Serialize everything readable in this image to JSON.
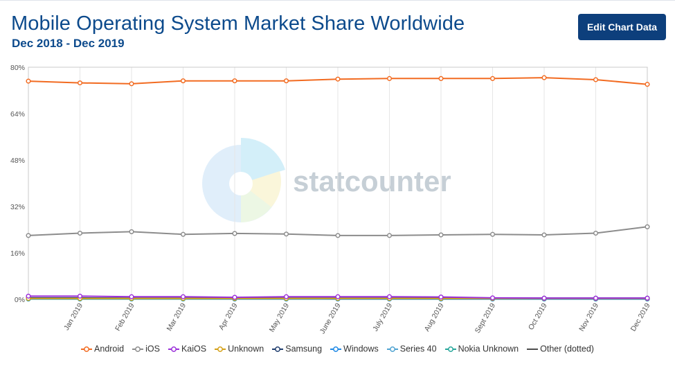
{
  "header": {
    "title": "Mobile Operating System Market Share Worldwide",
    "subtitle": "Dec 2018 - Dec 2019",
    "edit_button_label": "Edit Chart Data"
  },
  "watermark": {
    "text": "statcounter"
  },
  "chart_data": {
    "type": "line",
    "title": "Mobile Operating System Market Share Worldwide",
    "subtitle": "Dec 2018 - Dec 2019",
    "x": [
      "Dec 2018",
      "Jan 2019",
      "Feb 2019",
      "Mar 2019",
      "Apr 2019",
      "May 2019",
      "June 2019",
      "July 2019",
      "Aug 2019",
      "Sept 2019",
      "Oct 2019",
      "Nov 2019",
      "Dec 2019"
    ],
    "x_tick_labels": [
      "",
      "Jan 2019",
      "Feb 2019",
      "Mar 2019",
      "Apr 2019",
      "May 2019",
      "June 2019",
      "July 2019",
      "Aug 2019",
      "Sept 2019",
      "Oct 2019",
      "Nov 2019",
      "Dec 2019"
    ],
    "ylim": [
      0,
      80
    ],
    "y_ticks": [
      0,
      16,
      32,
      48,
      64,
      80
    ],
    "y_tick_labels": [
      "0%",
      "16%",
      "32%",
      "48%",
      "64%",
      "80%"
    ],
    "grid": "vertical",
    "legend_position": "bottom",
    "series": [
      {
        "name": "Android",
        "color": "#f26b21",
        "values": [
          75.2,
          74.6,
          74.3,
          75.3,
          75.3,
          75.3,
          75.9,
          76.1,
          76.1,
          76.1,
          76.4,
          75.7,
          74.1
        ]
      },
      {
        "name": "iOS",
        "color": "#8c8c8c",
        "values": [
          22.0,
          22.8,
          23.3,
          22.4,
          22.7,
          22.5,
          22.0,
          22.0,
          22.2,
          22.4,
          22.2,
          22.8,
          25.0
        ]
      },
      {
        "name": "KaiOS",
        "color": "#9b30d9",
        "values": [
          1.1,
          1.1,
          0.9,
          0.9,
          0.7,
          0.9,
          0.9,
          0.9,
          0.8,
          0.5,
          0.4,
          0.4,
          0.4
        ]
      },
      {
        "name": "Unknown",
        "color": "#d4a017",
        "values": [
          0.3,
          0.3,
          0.3,
          0.3,
          0.3,
          0.3,
          0.3,
          0.3,
          0.3,
          0.3,
          0.3,
          0.3,
          0.3
        ]
      },
      {
        "name": "Samsung",
        "color": "#1f3d6e",
        "values": [
          0.5,
          0.5,
          0.4,
          0.4,
          0.4,
          0.4,
          0.4,
          0.4,
          0.4,
          0.4,
          0.4,
          0.4,
          0.4
        ]
      },
      {
        "name": "Windows",
        "color": "#1e88e5",
        "values": [
          0.3,
          0.3,
          0.3,
          0.3,
          0.2,
          0.2,
          0.2,
          0.2,
          0.2,
          0.2,
          0.2,
          0.2,
          0.2
        ]
      },
      {
        "name": "Series 40",
        "color": "#4fa3d1",
        "values": [
          0.2,
          0.2,
          0.2,
          0.2,
          0.2,
          0.2,
          0.1,
          0.1,
          0.1,
          0.1,
          0.1,
          0.1,
          0.1
        ]
      },
      {
        "name": "Nokia Unknown",
        "color": "#26a69a",
        "values": [
          0.1,
          0.1,
          0.1,
          0.1,
          0.1,
          0.1,
          0.1,
          0.1,
          0.1,
          0.1,
          0.1,
          0.1,
          0.1
        ]
      },
      {
        "name": "Other (dotted)",
        "color": "#4d4d4d",
        "dashed": true,
        "values": [
          0.2,
          0.2,
          0.2,
          0.2,
          0.2,
          0.2,
          0.2,
          0.2,
          0.2,
          0.2,
          0.2,
          0.2,
          0.2
        ]
      }
    ]
  }
}
